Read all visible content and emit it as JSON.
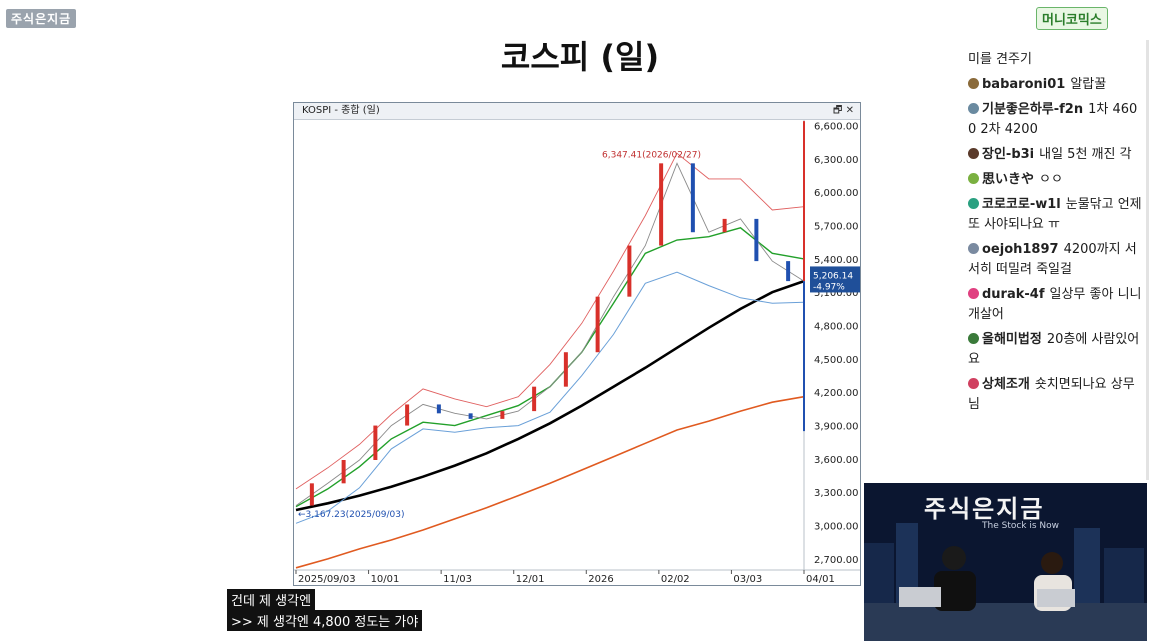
{
  "logos": {
    "top_left": "주식은지금",
    "top_right": "머니코믹스"
  },
  "slide_title": "코스피 (일)",
  "chart_window": {
    "title": "KOSPI - 종합 (일)",
    "buttons": "🗗 ✕"
  },
  "chart_data": {
    "type": "line",
    "title": "KOSPI - 종합 (일)",
    "y_ticks": [
      "6,600.00",
      "6,300.00",
      "6,000.00",
      "5,700.00",
      "5,400.00",
      "5,100.00",
      "4,800.00",
      "4,500.00",
      "4,200.00",
      "3,900.00",
      "3,600.00",
      "3,300.00",
      "3,000.00",
      "2,700.00"
    ],
    "x_ticks": [
      "2025/09/03",
      "10/01",
      "11/03",
      "12/01",
      "2026",
      "02/02",
      "03/03",
      "04/01"
    ],
    "ylim": [
      2600,
      6650
    ],
    "annotations": {
      "high": "6,347.41(2026/02/27)",
      "low": "3,167.23(2025/09/03)"
    },
    "current_value": "5,206.14",
    "current_change": "-4.97%",
    "series": [
      {
        "color": "#000000",
        "values": [
          3140,
          3200,
          3270,
          3350,
          3440,
          3540,
          3650,
          3780,
          3920,
          4080,
          4250,
          4420,
          4600,
          4780,
          4950,
          5100,
          5200
        ]
      },
      {
        "color": "#22a02a",
        "values": [
          3170,
          3330,
          3530,
          3780,
          3930,
          3900,
          3990,
          4080,
          4250,
          4560,
          5000,
          5450,
          5570,
          5600,
          5680,
          5450,
          5400
        ]
      },
      {
        "color": "#e05a20",
        "values": [
          2620,
          2700,
          2790,
          2870,
          2960,
          3060,
          3160,
          3270,
          3380,
          3500,
          3620,
          3740,
          3860,
          3940,
          4030,
          4110,
          4160
        ]
      },
      {
        "color": "#6aa0d8",
        "values": [
          3020,
          3130,
          3340,
          3690,
          3870,
          3840,
          3880,
          3900,
          4020,
          4350,
          4720,
          5180,
          5280,
          5160,
          5050,
          5000,
          5010
        ]
      },
      {
        "color": "#e06060",
        "values": [
          3330,
          3520,
          3730,
          4000,
          4230,
          4140,
          4070,
          4160,
          4450,
          4820,
          5290,
          5790,
          6350,
          6120,
          6120,
          5840,
          5870
        ]
      },
      {
        "color": "#8a8a8a",
        "values": [
          3180,
          3380,
          3590,
          3900,
          4090,
          4010,
          3960,
          4030,
          4250,
          4560,
          5060,
          5520,
          6260,
          5640,
          5760,
          5380,
          5200
        ]
      }
    ]
  },
  "chat": [
    {
      "user": "",
      "text": "미를 견주기",
      "color": "#999999"
    },
    {
      "user": "babaroni01",
      "text": "알랍꿀",
      "color": "#8a6a3a"
    },
    {
      "user": "기분좋은하루-f2n",
      "text": "1차 4600 2차 4200",
      "color": "#6a8aa0"
    },
    {
      "user": "장인-b3i",
      "text": "내일 5천 깨진 각",
      "color": "#5a3a2a"
    },
    {
      "user": "思いきや",
      "text": "ㅇㅇ",
      "color": "#7ab040"
    },
    {
      "user": "코로코로-w1l",
      "text": "눈물닦고 언제 또 사야되나요 ㅠ",
      "color": "#2aa080"
    },
    {
      "user": "oejoh1897",
      "text": "4200까지 서서히 떠밀려 죽일걸",
      "color": "#7a8aa0"
    },
    {
      "user": "durak-4f",
      "text": "일상무 좋아 니니 개살어",
      "color": "#e04080"
    },
    {
      "user": "올해미법정",
      "text": "20층에 사람있어요",
      "color": "#3a7a3a"
    },
    {
      "user": "상체조개",
      "text": "숏치면되나요 상무님",
      "color": "#d04060"
    }
  ],
  "camera": {
    "brand": "주식은지금",
    "tagline": "The Stock is Now"
  },
  "subtitles": {
    "line1": "건데 제 생각엔",
    "line2": ">> 제 생각엔 4,800 정도는 가야"
  }
}
